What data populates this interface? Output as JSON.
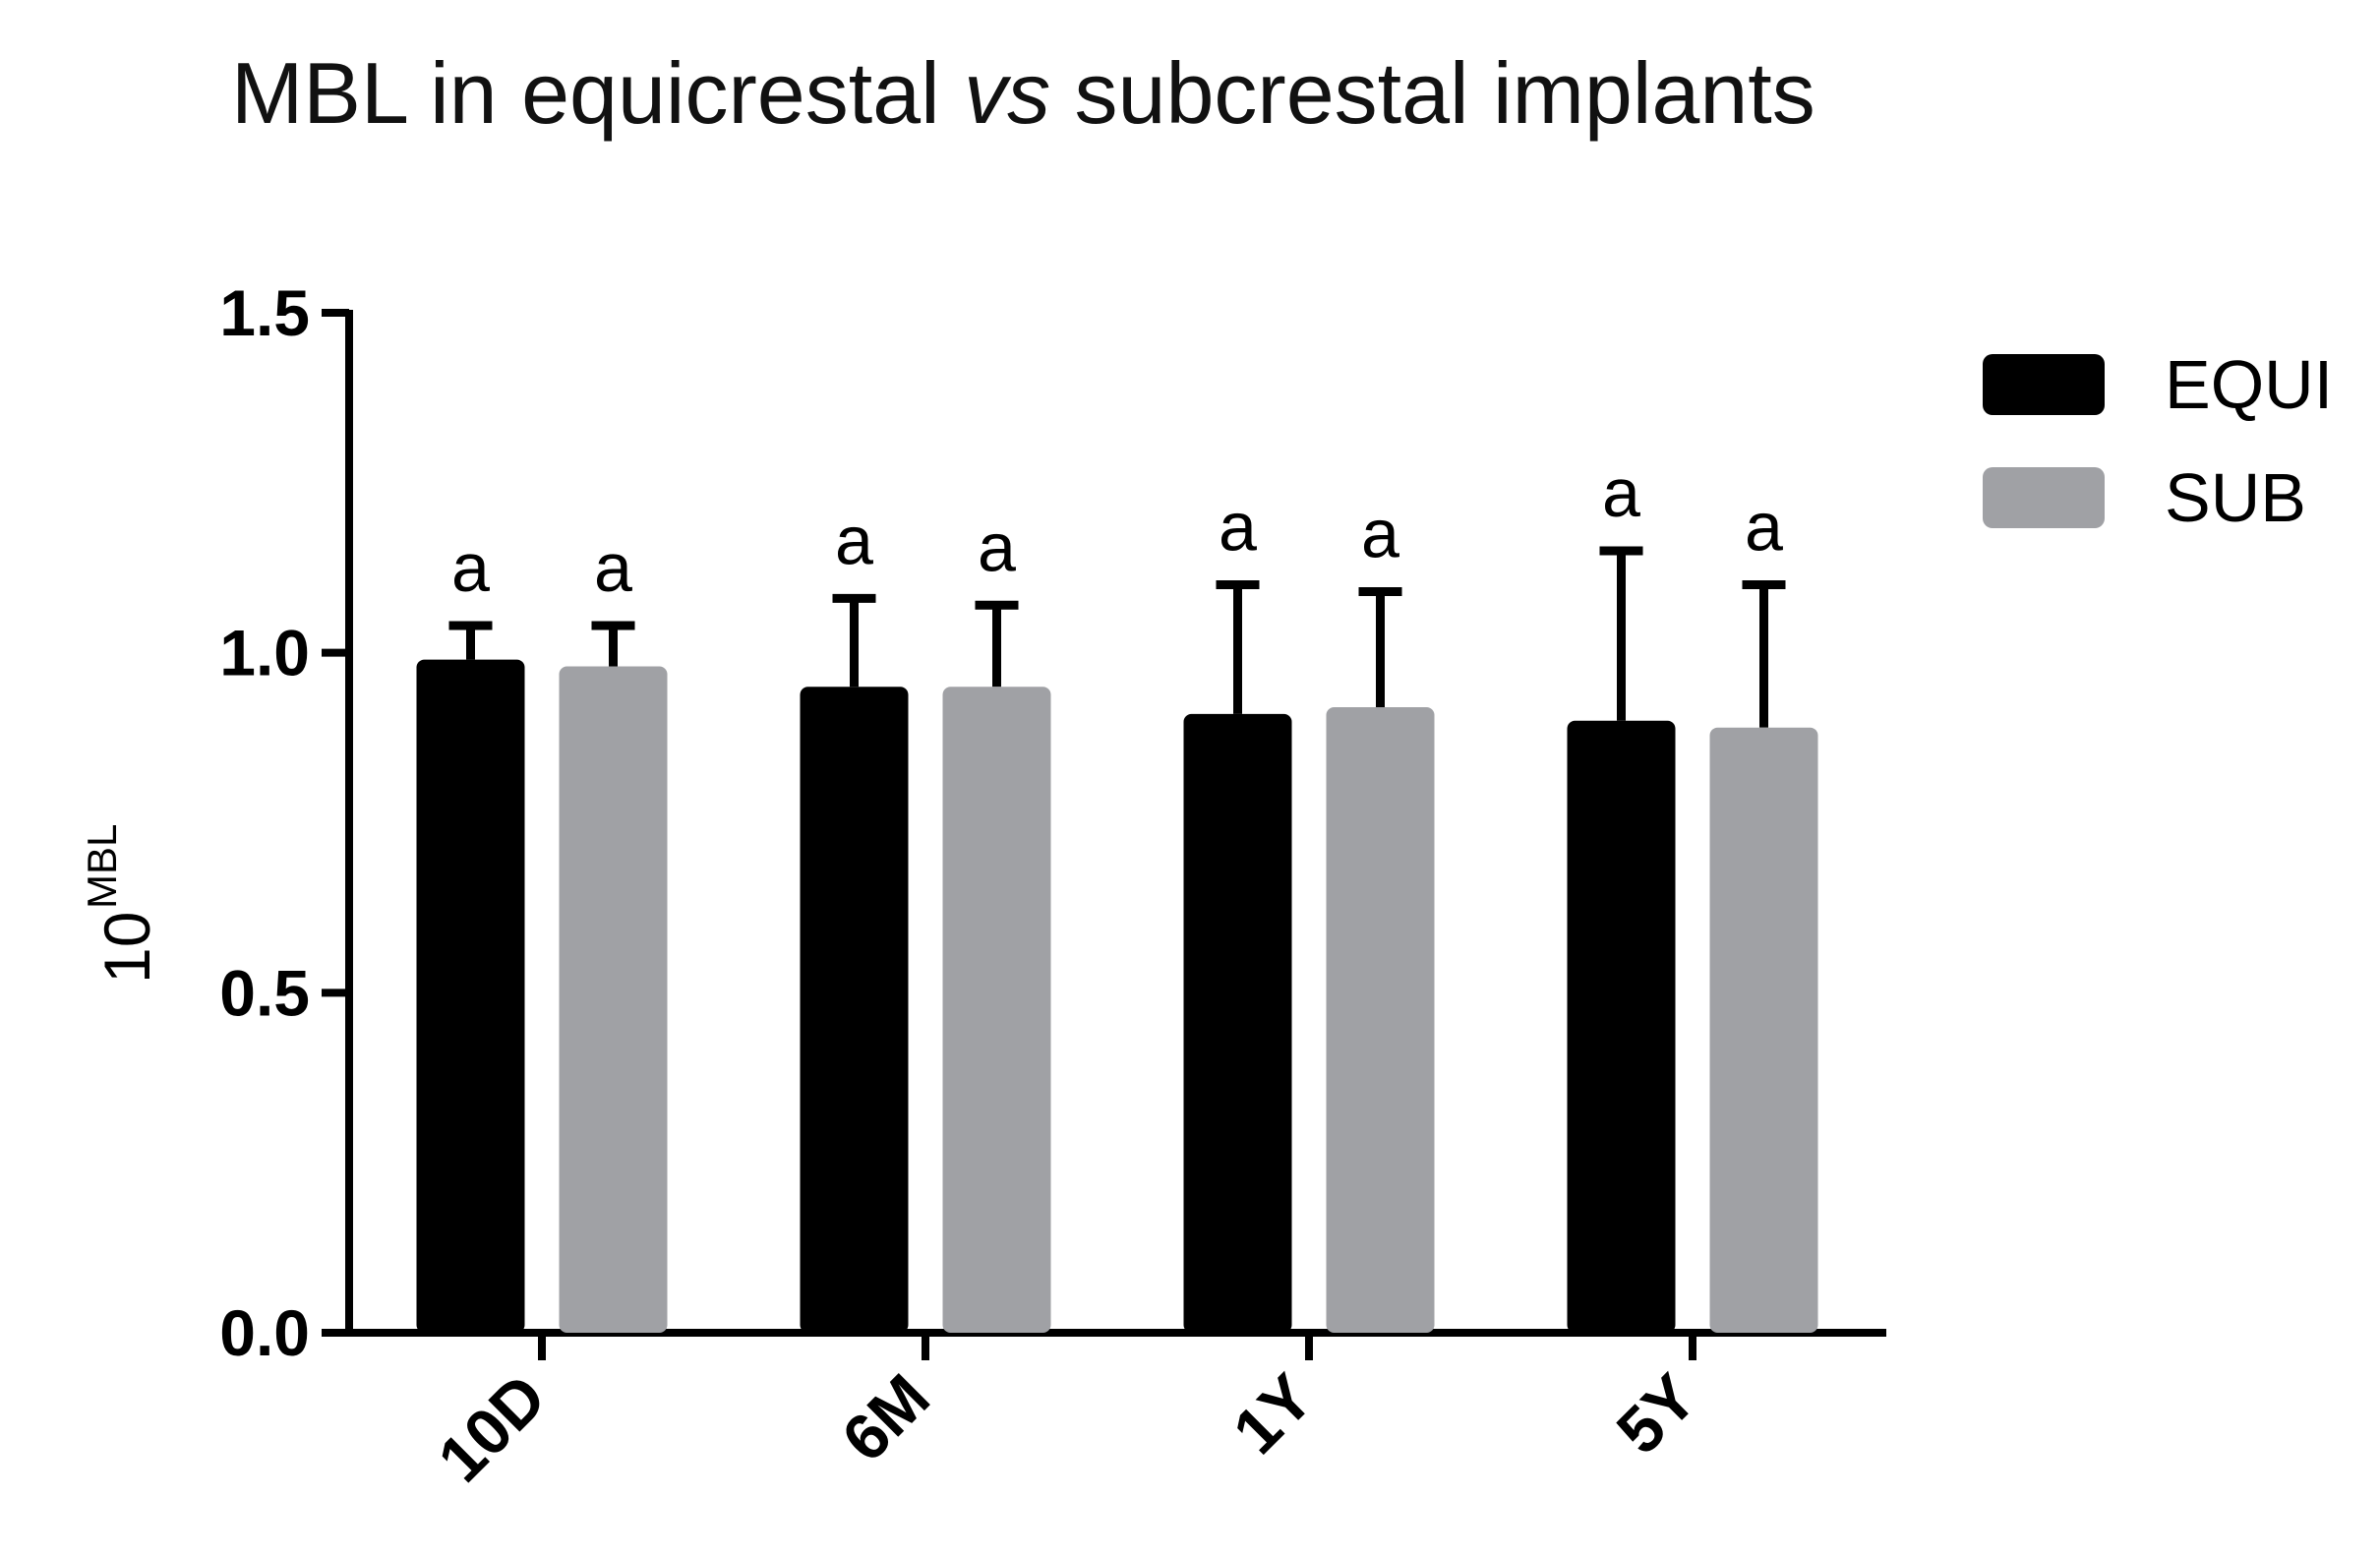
{
  "chart_data": {
    "type": "bar",
    "title": {
      "part1": "MBL in equicrestal ",
      "italic": "vs",
      "part2": " subcrestal implants"
    },
    "ylabel": {
      "base": "10",
      "superscript": "MBL"
    },
    "xlabel": "",
    "ylim": [
      0,
      1.5
    ],
    "yticks": [
      "0.0",
      "0.5",
      "1.0",
      "1.5"
    ],
    "categories": [
      "10D",
      "6M",
      "1Y",
      "5Y"
    ],
    "legend_position": "top-right",
    "grid": false,
    "series": [
      {
        "name": "EQUI",
        "color": "#000000",
        "values": [
          0.99,
          0.95,
          0.91,
          0.9
        ],
        "error_upper": [
          0.05,
          0.13,
          0.19,
          0.25
        ],
        "significance": [
          "a",
          "a",
          "a",
          "a"
        ]
      },
      {
        "name": "SUB",
        "color": "#a0a1a5",
        "values": [
          0.98,
          0.95,
          0.92,
          0.89
        ],
        "error_upper": [
          0.06,
          0.12,
          0.17,
          0.21
        ],
        "significance": [
          "a",
          "a",
          "a",
          "a"
        ]
      }
    ]
  }
}
